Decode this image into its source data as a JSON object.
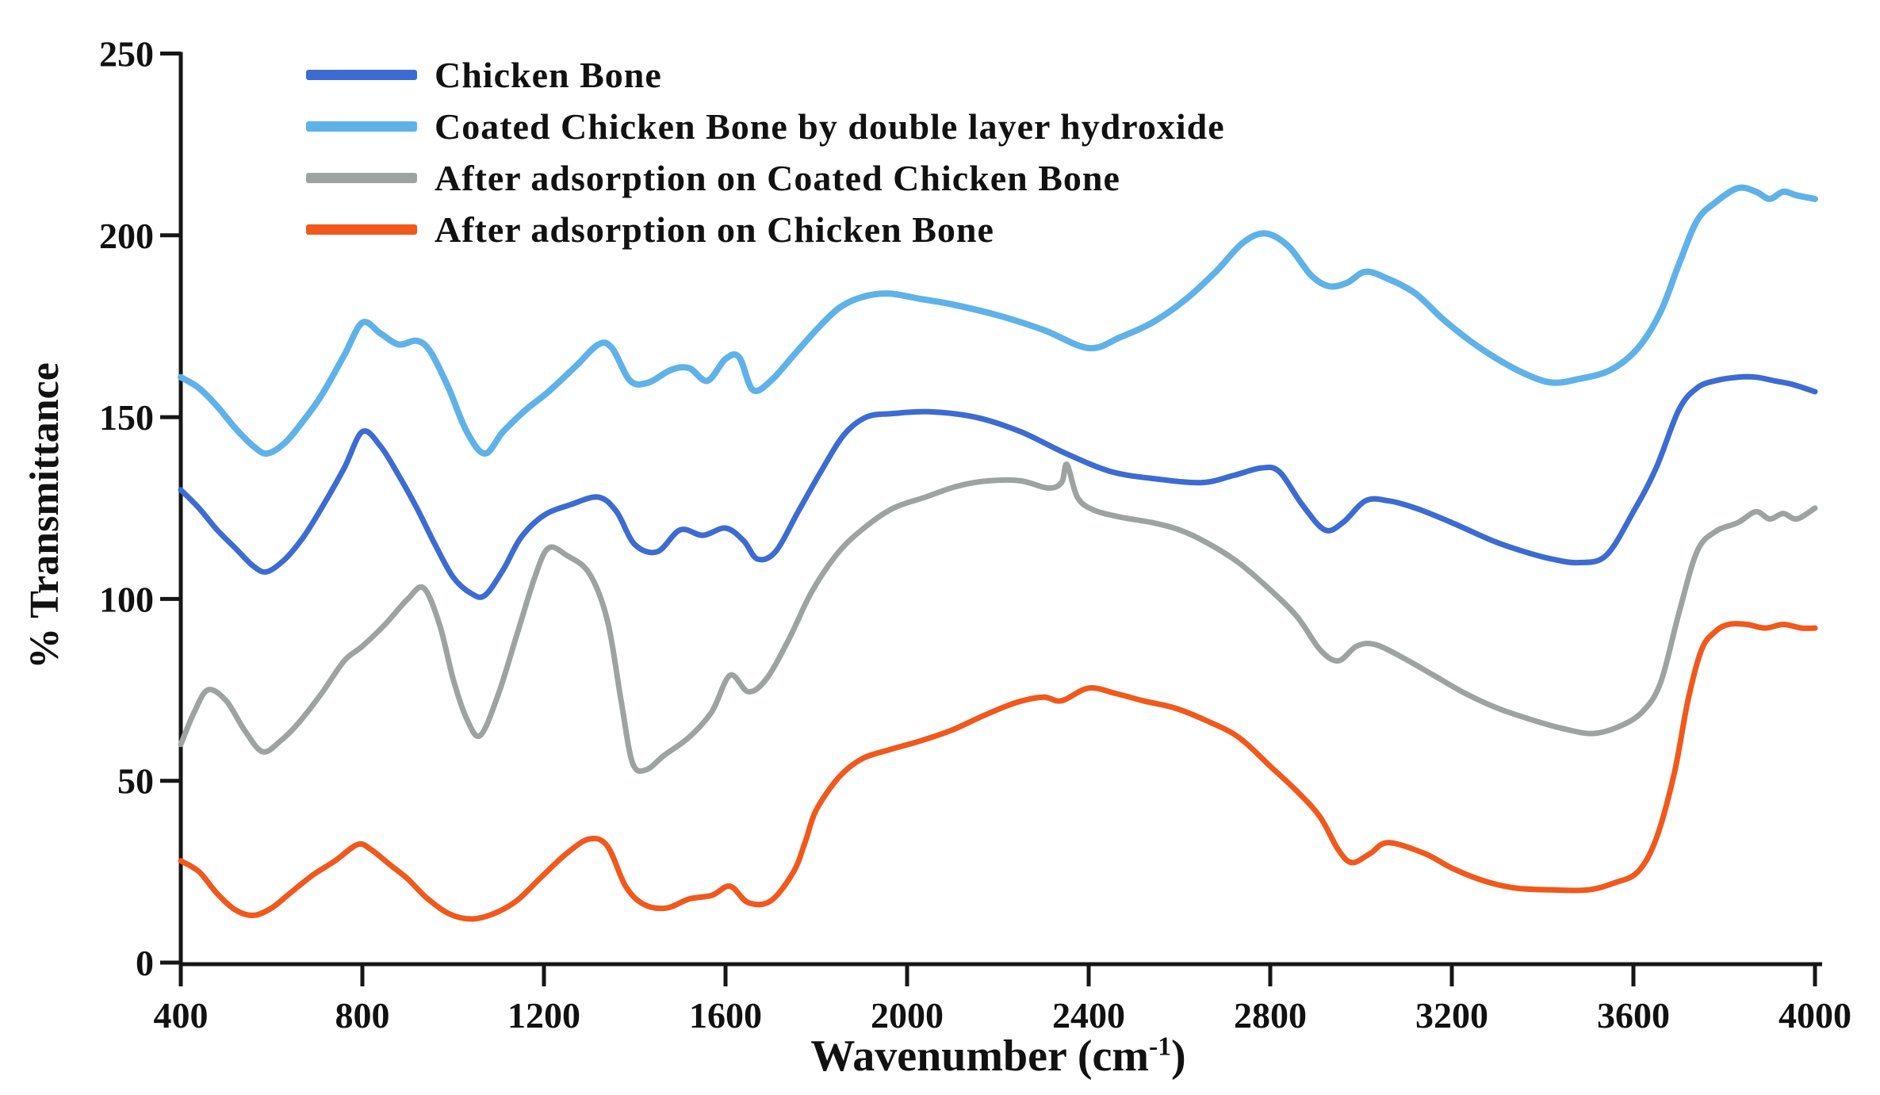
{
  "chart_data": {
    "type": "line",
    "title": "",
    "ylabel": "% Transmittance",
    "xlabel_parts": {
      "prefix": "Wavenumber (cm",
      "sup": "-1",
      "suffix": ")"
    },
    "x_ticks": [
      400,
      800,
      1200,
      1600,
      2000,
      2400,
      2800,
      3200,
      3600,
      4000
    ],
    "y_ticks": [
      0,
      50,
      100,
      150,
      200,
      250
    ],
    "xlim": [
      400,
      4000
    ],
    "ylim": [
      0,
      250
    ],
    "grid": false,
    "legend_position": "top-left",
    "axis_color": "#161616",
    "series": [
      {
        "name": "Chicken Bone",
        "color": "#3c6bd2",
        "stroke_width": 7,
        "points": [
          [
            400,
            130
          ],
          [
            440,
            125
          ],
          [
            480,
            119
          ],
          [
            520,
            114
          ],
          [
            560,
            109
          ],
          [
            590,
            107.5
          ],
          [
            630,
            111
          ],
          [
            670,
            117
          ],
          [
            710,
            125
          ],
          [
            760,
            136
          ],
          [
            800,
            146
          ],
          [
            840,
            142
          ],
          [
            880,
            134
          ],
          [
            920,
            125
          ],
          [
            960,
            115
          ],
          [
            1000,
            106
          ],
          [
            1040,
            101.5
          ],
          [
            1070,
            101
          ],
          [
            1110,
            108
          ],
          [
            1150,
            117
          ],
          [
            1200,
            123
          ],
          [
            1260,
            126
          ],
          [
            1320,
            128
          ],
          [
            1360,
            124
          ],
          [
            1400,
            115
          ],
          [
            1450,
            113
          ],
          [
            1500,
            119
          ],
          [
            1550,
            117.5
          ],
          [
            1600,
            119.5
          ],
          [
            1640,
            116
          ],
          [
            1670,
            111
          ],
          [
            1710,
            113
          ],
          [
            1760,
            124
          ],
          [
            1810,
            135
          ],
          [
            1860,
            145
          ],
          [
            1910,
            150
          ],
          [
            1970,
            151
          ],
          [
            2050,
            151.5
          ],
          [
            2150,
            150
          ],
          [
            2250,
            146
          ],
          [
            2350,
            140
          ],
          [
            2450,
            135
          ],
          [
            2550,
            133
          ],
          [
            2650,
            132
          ],
          [
            2720,
            134
          ],
          [
            2780,
            136
          ],
          [
            2820,
            135
          ],
          [
            2870,
            126
          ],
          [
            2920,
            119
          ],
          [
            2960,
            121
          ],
          [
            3010,
            127
          ],
          [
            3060,
            127
          ],
          [
            3120,
            125
          ],
          [
            3200,
            121
          ],
          [
            3290,
            116
          ],
          [
            3360,
            113
          ],
          [
            3420,
            111
          ],
          [
            3480,
            110
          ],
          [
            3540,
            112
          ],
          [
            3600,
            124
          ],
          [
            3650,
            136
          ],
          [
            3700,
            152
          ],
          [
            3740,
            158
          ],
          [
            3780,
            160
          ],
          [
            3830,
            161
          ],
          [
            3870,
            161
          ],
          [
            3910,
            160
          ],
          [
            3950,
            159
          ],
          [
            4000,
            157
          ]
        ]
      },
      {
        "name": "Coated Chicken Bone by double layer hydroxide",
        "color": "#5fb2e8",
        "stroke_width": 8,
        "points": [
          [
            400,
            161
          ],
          [
            440,
            158
          ],
          [
            480,
            153
          ],
          [
            520,
            147
          ],
          [
            560,
            142
          ],
          [
            590,
            140
          ],
          [
            630,
            143
          ],
          [
            670,
            149
          ],
          [
            710,
            156
          ],
          [
            760,
            167
          ],
          [
            800,
            176
          ],
          [
            840,
            173
          ],
          [
            880,
            170
          ],
          [
            920,
            171
          ],
          [
            950,
            168
          ],
          [
            990,
            158
          ],
          [
            1030,
            146
          ],
          [
            1070,
            140
          ],
          [
            1110,
            146
          ],
          [
            1160,
            152
          ],
          [
            1210,
            157
          ],
          [
            1270,
            164
          ],
          [
            1320,
            170
          ],
          [
            1350,
            169
          ],
          [
            1390,
            160
          ],
          [
            1430,
            159.5
          ],
          [
            1480,
            163
          ],
          [
            1520,
            163.5
          ],
          [
            1560,
            160
          ],
          [
            1600,
            166
          ],
          [
            1630,
            166.5
          ],
          [
            1660,
            157.5
          ],
          [
            1700,
            160
          ],
          [
            1750,
            167
          ],
          [
            1800,
            174
          ],
          [
            1850,
            180
          ],
          [
            1900,
            183
          ],
          [
            1960,
            184
          ],
          [
            2030,
            182.5
          ],
          [
            2100,
            181
          ],
          [
            2200,
            178
          ],
          [
            2300,
            174
          ],
          [
            2400,
            169
          ],
          [
            2470,
            172
          ],
          [
            2540,
            176
          ],
          [
            2610,
            182
          ],
          [
            2680,
            190
          ],
          [
            2740,
            198
          ],
          [
            2790,
            200.5
          ],
          [
            2840,
            197
          ],
          [
            2890,
            189
          ],
          [
            2930,
            186
          ],
          [
            2970,
            187
          ],
          [
            3010,
            190
          ],
          [
            3060,
            188
          ],
          [
            3120,
            184
          ],
          [
            3180,
            177
          ],
          [
            3240,
            171
          ],
          [
            3300,
            166
          ],
          [
            3360,
            162
          ],
          [
            3420,
            159.5
          ],
          [
            3480,
            160.5
          ],
          [
            3550,
            163
          ],
          [
            3610,
            169
          ],
          [
            3660,
            179
          ],
          [
            3700,
            192
          ],
          [
            3740,
            204
          ],
          [
            3780,
            209
          ],
          [
            3830,
            213
          ],
          [
            3870,
            212
          ],
          [
            3900,
            210
          ],
          [
            3930,
            212
          ],
          [
            3960,
            211
          ],
          [
            4000,
            210
          ]
        ]
      },
      {
        "name": "After adsorption on Coated Chicken Bone",
        "color": "#9ea3a2",
        "stroke_width": 7,
        "points": [
          [
            400,
            60
          ],
          [
            430,
            69
          ],
          [
            460,
            75
          ],
          [
            500,
            72
          ],
          [
            540,
            64
          ],
          [
            580,
            58
          ],
          [
            620,
            61
          ],
          [
            660,
            66
          ],
          [
            710,
            74
          ],
          [
            760,
            83
          ],
          [
            800,
            87
          ],
          [
            850,
            93
          ],
          [
            900,
            100
          ],
          [
            935,
            103
          ],
          [
            970,
            93
          ],
          [
            1000,
            78
          ],
          [
            1030,
            67
          ],
          [
            1060,
            62.5
          ],
          [
            1100,
            74
          ],
          [
            1140,
            90
          ],
          [
            1180,
            106
          ],
          [
            1210,
            114
          ],
          [
            1250,
            112
          ],
          [
            1300,
            107
          ],
          [
            1340,
            94
          ],
          [
            1370,
            72
          ],
          [
            1395,
            55
          ],
          [
            1425,
            53
          ],
          [
            1465,
            57
          ],
          [
            1520,
            62
          ],
          [
            1570,
            69
          ],
          [
            1610,
            79
          ],
          [
            1650,
            74.5
          ],
          [
            1690,
            78
          ],
          [
            1740,
            89
          ],
          [
            1790,
            102
          ],
          [
            1850,
            113
          ],
          [
            1910,
            120
          ],
          [
            1970,
            125
          ],
          [
            2040,
            128
          ],
          [
            2110,
            131
          ],
          [
            2180,
            132.5
          ],
          [
            2250,
            132.5
          ],
          [
            2310,
            130.5
          ],
          [
            2340,
            132
          ],
          [
            2352,
            137
          ],
          [
            2375,
            128
          ],
          [
            2410,
            124.5
          ],
          [
            2470,
            122.5
          ],
          [
            2540,
            121
          ],
          [
            2600,
            119
          ],
          [
            2660,
            115.5
          ],
          [
            2730,
            110
          ],
          [
            2800,
            102.5
          ],
          [
            2860,
            95
          ],
          [
            2910,
            86
          ],
          [
            2950,
            83
          ],
          [
            2990,
            87
          ],
          [
            3030,
            87.5
          ],
          [
            3090,
            84
          ],
          [
            3160,
            79
          ],
          [
            3230,
            74
          ],
          [
            3300,
            70
          ],
          [
            3370,
            67
          ],
          [
            3440,
            64.5
          ],
          [
            3510,
            63
          ],
          [
            3570,
            65
          ],
          [
            3620,
            69
          ],
          [
            3660,
            77
          ],
          [
            3700,
            96
          ],
          [
            3740,
            113
          ],
          [
            3780,
            118.5
          ],
          [
            3830,
            121
          ],
          [
            3870,
            124
          ],
          [
            3900,
            122
          ],
          [
            3930,
            123.5
          ],
          [
            3960,
            122
          ],
          [
            4000,
            125
          ]
        ]
      },
      {
        "name": "After adsorption on Chicken Bone",
        "color": "#f1581c",
        "stroke_width": 7,
        "points": [
          [
            400,
            28
          ],
          [
            440,
            25
          ],
          [
            480,
            19
          ],
          [
            520,
            14.5
          ],
          [
            560,
            13
          ],
          [
            600,
            15
          ],
          [
            640,
            19
          ],
          [
            690,
            24
          ],
          [
            740,
            28
          ],
          [
            790,
            32.5
          ],
          [
            820,
            31
          ],
          [
            860,
            27
          ],
          [
            900,
            23
          ],
          [
            940,
            18
          ],
          [
            990,
            13.5
          ],
          [
            1040,
            12
          ],
          [
            1090,
            13.5
          ],
          [
            1140,
            17
          ],
          [
            1190,
            23
          ],
          [
            1250,
            30
          ],
          [
            1300,
            34
          ],
          [
            1340,
            32
          ],
          [
            1380,
            21
          ],
          [
            1420,
            16
          ],
          [
            1470,
            15
          ],
          [
            1520,
            17.5
          ],
          [
            1570,
            18.5
          ],
          [
            1610,
            21
          ],
          [
            1650,
            16.5
          ],
          [
            1700,
            17
          ],
          [
            1750,
            25
          ],
          [
            1775,
            33
          ],
          [
            1800,
            42
          ],
          [
            1850,
            51
          ],
          [
            1900,
            56
          ],
          [
            1960,
            58.5
          ],
          [
            2030,
            61
          ],
          [
            2100,
            64
          ],
          [
            2170,
            68
          ],
          [
            2240,
            71.5
          ],
          [
            2300,
            73
          ],
          [
            2340,
            72
          ],
          [
            2400,
            75.5
          ],
          [
            2460,
            74
          ],
          [
            2520,
            72
          ],
          [
            2590,
            70
          ],
          [
            2660,
            66.5
          ],
          [
            2730,
            62
          ],
          [
            2800,
            54
          ],
          [
            2860,
            47
          ],
          [
            2910,
            40
          ],
          [
            2950,
            31
          ],
          [
            2980,
            27.5
          ],
          [
            3020,
            30
          ],
          [
            3060,
            33
          ],
          [
            3140,
            30
          ],
          [
            3200,
            26
          ],
          [
            3270,
            22.5
          ],
          [
            3340,
            20.5
          ],
          [
            3420,
            20
          ],
          [
            3500,
            20
          ],
          [
            3560,
            22
          ],
          [
            3610,
            25
          ],
          [
            3650,
            34
          ],
          [
            3690,
            52
          ],
          [
            3720,
            72
          ],
          [
            3750,
            86
          ],
          [
            3780,
            91
          ],
          [
            3810,
            93
          ],
          [
            3850,
            93
          ],
          [
            3890,
            92
          ],
          [
            3930,
            93
          ],
          [
            3970,
            92
          ],
          [
            4000,
            92
          ]
        ]
      }
    ]
  }
}
